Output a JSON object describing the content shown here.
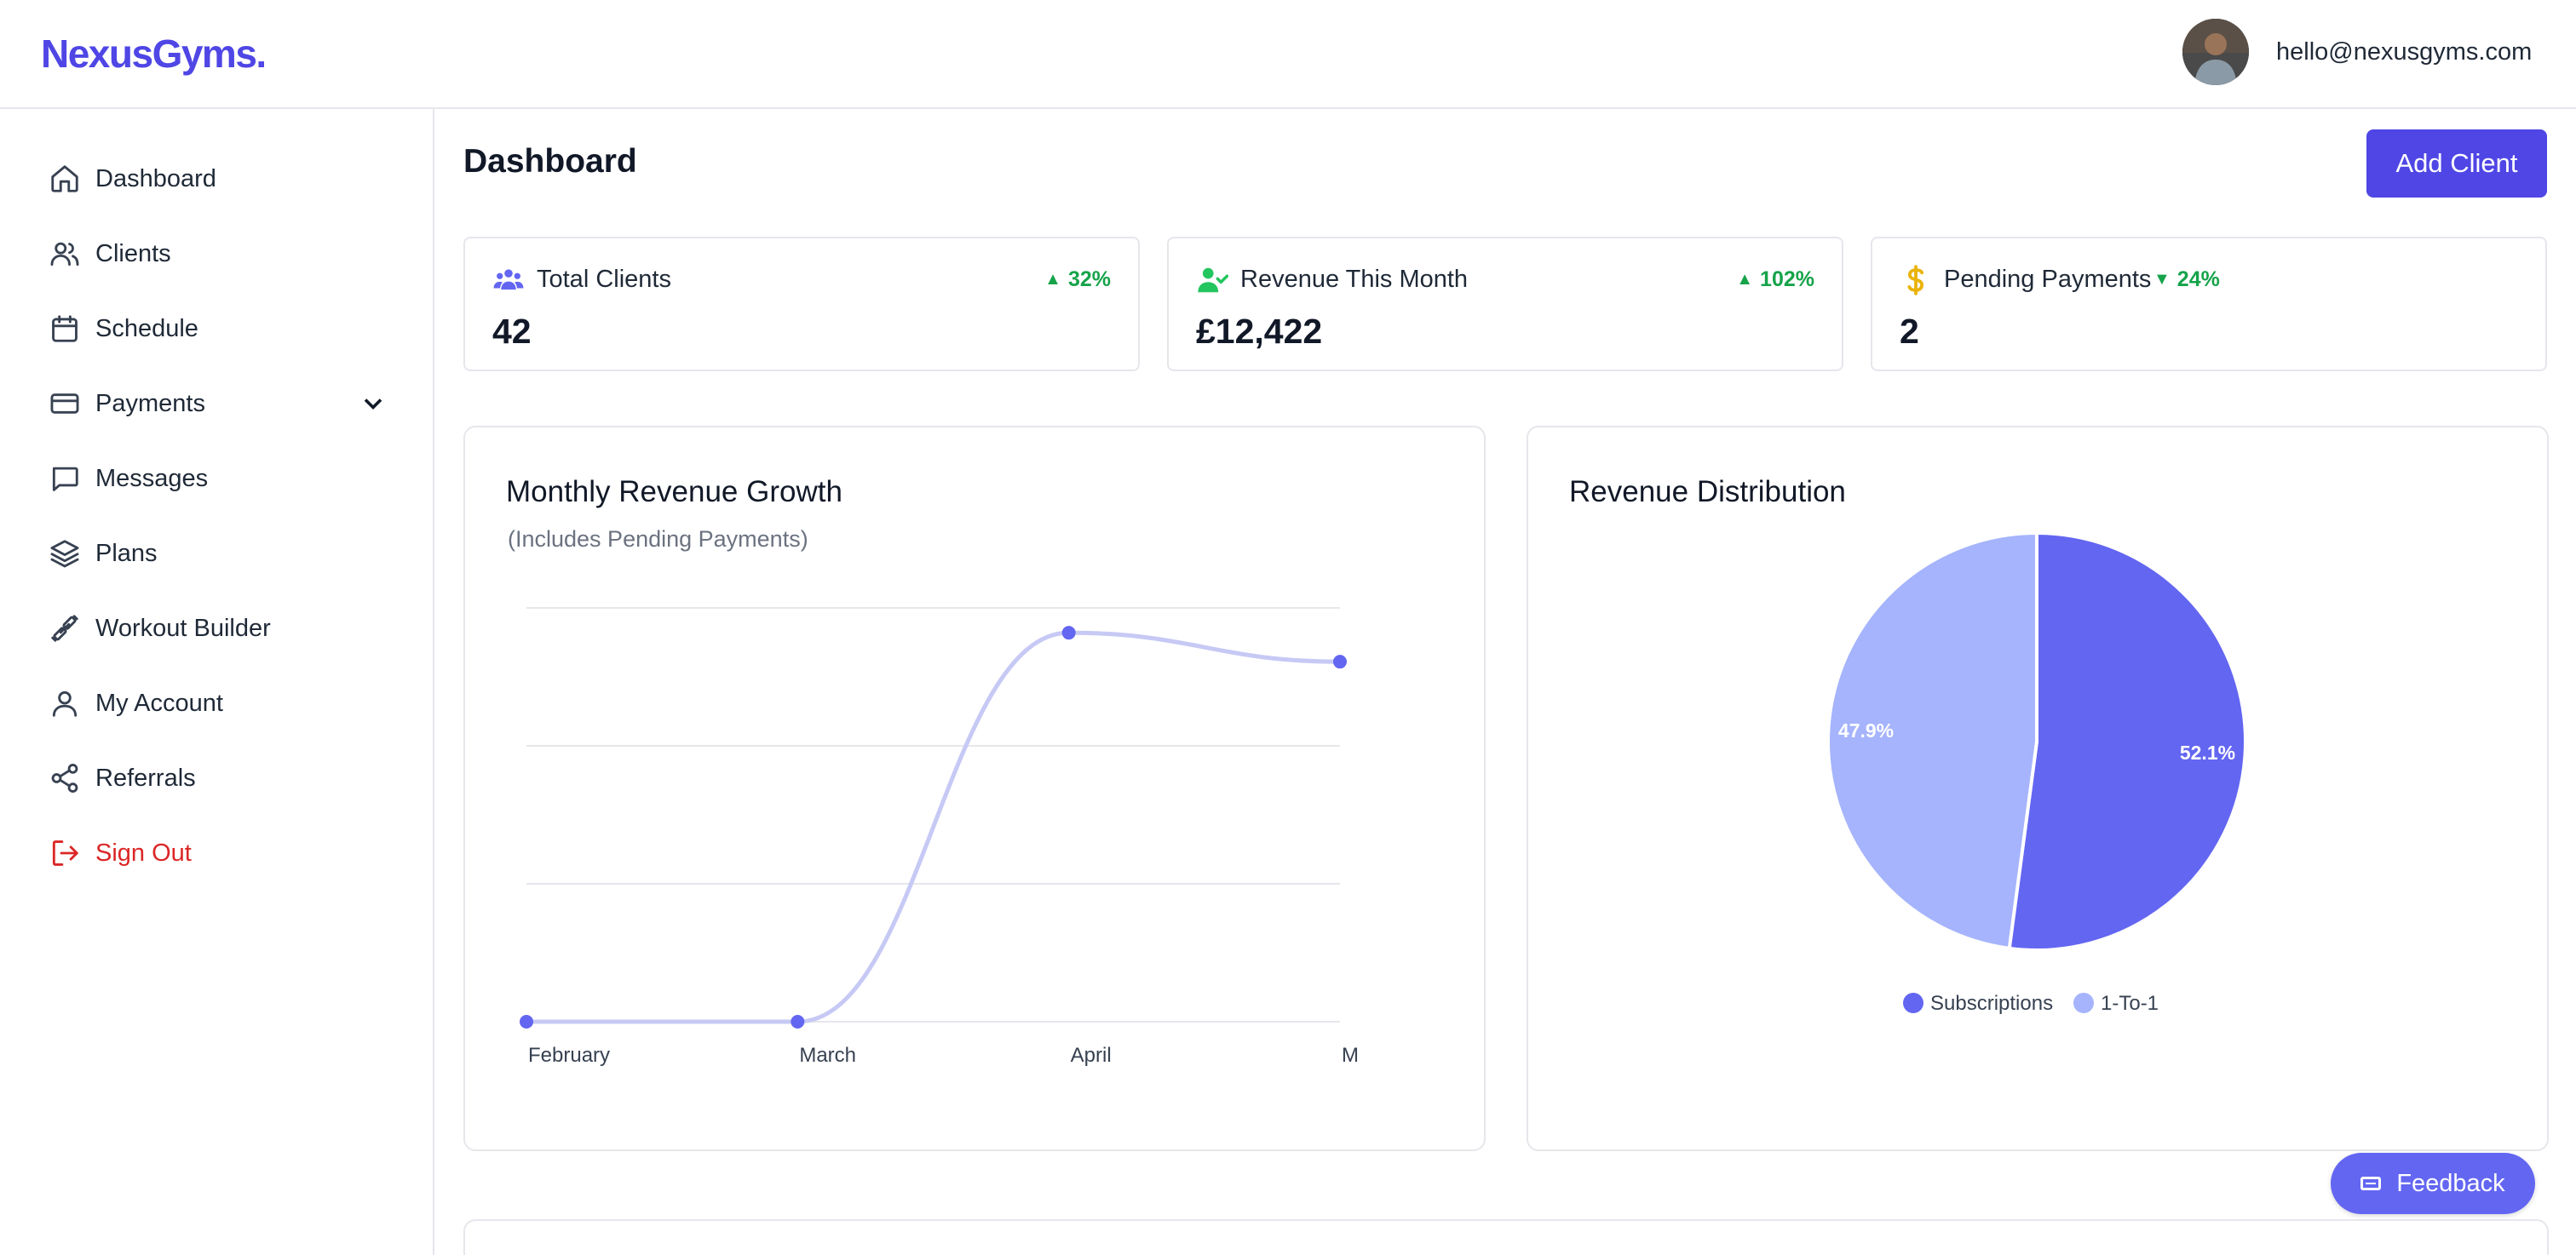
{
  "header": {
    "logo": "NexusGyms.",
    "user_email": "hello@nexusgyms.com"
  },
  "sidebar": {
    "items": [
      {
        "label": "Dashboard",
        "icon": "home-icon"
      },
      {
        "label": "Clients",
        "icon": "users-icon"
      },
      {
        "label": "Schedule",
        "icon": "calendar-icon"
      },
      {
        "label": "Payments",
        "icon": "credit-card-icon"
      },
      {
        "label": "Messages",
        "icon": "message-icon"
      },
      {
        "label": "Plans",
        "icon": "layers-icon"
      },
      {
        "label": "Workout Builder",
        "icon": "dumbbell-icon"
      },
      {
        "label": "My Account",
        "icon": "user-icon"
      },
      {
        "label": "Referrals",
        "icon": "share-icon"
      },
      {
        "label": "Sign Out",
        "icon": "sign-out-icon"
      }
    ]
  },
  "main": {
    "title": "Dashboard",
    "add_client_label": "Add Client"
  },
  "stats": [
    {
      "label": "Total Clients",
      "value": "42",
      "change": "32%",
      "direction": "up",
      "icon": "users-icon",
      "color": "#6366f1"
    },
    {
      "label": "Revenue This Month",
      "value": "£12,422",
      "change": "102%",
      "direction": "up",
      "icon": "user-check-icon",
      "color": "#22c55e"
    },
    {
      "label": "Pending Payments",
      "value": "2",
      "change": "24%",
      "direction": "down",
      "icon": "dollar-icon",
      "color": "#eab308"
    }
  ],
  "line_chart": {
    "title": "Monthly Revenue Growth",
    "subtitle": "(Includes Pending Payments)"
  },
  "pie_chart": {
    "title": "Revenue Distribution"
  },
  "chart_data": [
    {
      "type": "line",
      "title": "Monthly Revenue Growth",
      "subtitle": "(Includes Pending Payments)",
      "categories": [
        "February",
        "March",
        "April",
        "M"
      ],
      "series": [
        {
          "values": [
            0,
            0,
            94,
            87
          ]
        }
      ],
      "ylim": [
        0,
        100
      ],
      "grid": true,
      "color": "#6366f1",
      "line_color": "#c7c9f5"
    },
    {
      "type": "pie",
      "title": "Revenue Distribution",
      "labels": [
        "Subscriptions",
        "1-To-1"
      ],
      "values": [
        52.1,
        47.9
      ],
      "value_labels": [
        "52.1%",
        "47.9%"
      ],
      "colors": [
        "#6366f1",
        "#a5b4fc"
      ],
      "legend": "bottom"
    }
  ],
  "feedback": {
    "label": "Feedback"
  }
}
